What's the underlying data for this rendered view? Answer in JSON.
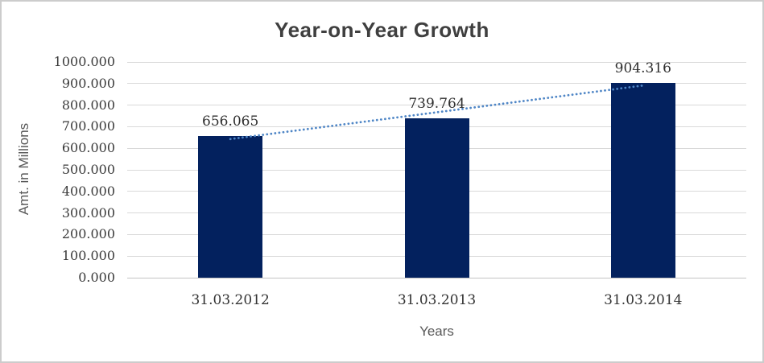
{
  "chart_data": {
    "type": "bar",
    "title": "Year-on-Year Growth",
    "xlabel": "Years",
    "ylabel": "Amt. in Millions",
    "categories": [
      "31.03.2012",
      "31.03.2013",
      "31.03.2014"
    ],
    "values": [
      656.065,
      739.764,
      904.316
    ],
    "data_labels": [
      "656.065",
      "739.764",
      "904.316"
    ],
    "ylim": [
      0,
      1000
    ],
    "ytick_step": 100,
    "ytick_labels": [
      "1000.000",
      "900.000",
      "800.000",
      "700.000",
      "600.000",
      "500.000",
      "400.000",
      "300.000",
      "200.000",
      "100.000",
      "0.000"
    ],
    "grid": true,
    "legend": "none",
    "trendline": {
      "kind": "linear-dotted"
    },
    "colors": {
      "bar": "#03215e",
      "trendline": "#4f86c6",
      "gridline": "#d9d9d9",
      "axis_line": "#c3c3c3",
      "title_text": "#3f3f3f",
      "tick_text": "#3a3a3a",
      "axis_title_text": "#595959",
      "border": "#cccccc",
      "background": "#ffffff"
    }
  }
}
